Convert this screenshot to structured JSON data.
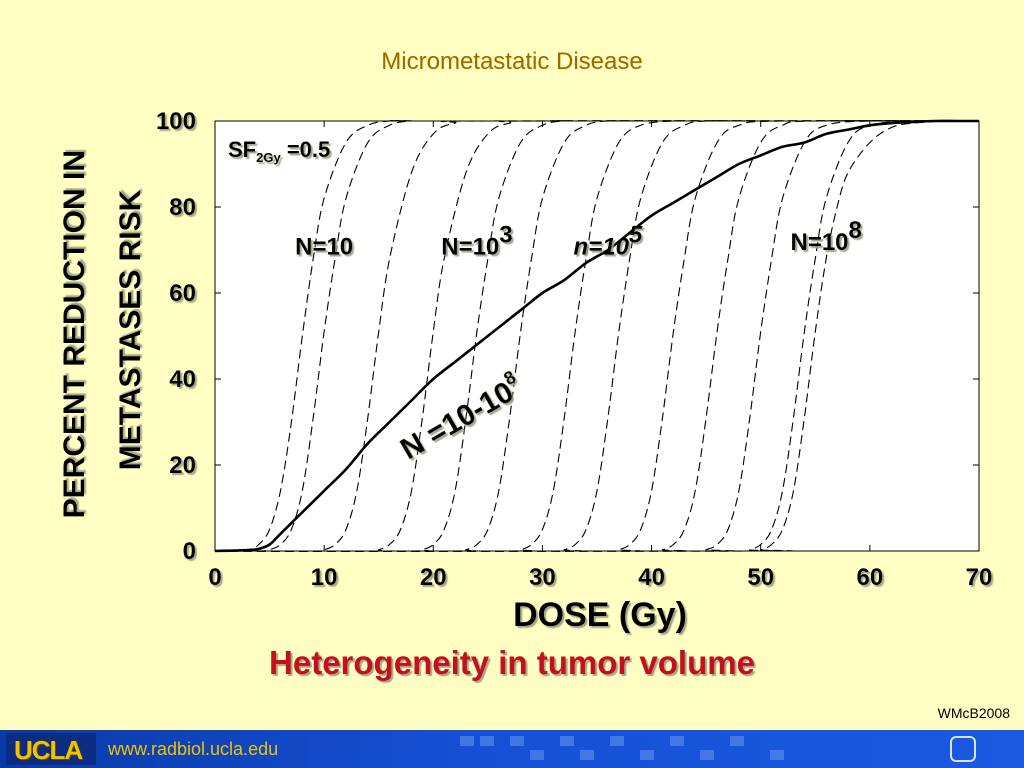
{
  "slide": {
    "title": "Micrometastatic Disease",
    "subtitle": "Heterogeneity in tumor volume",
    "credit": "WMcB2008"
  },
  "footer": {
    "logo_text": "UCLA",
    "url": "www.radbiol.ucla.edu"
  },
  "chart_data": {
    "type": "line",
    "xlabel": "DOSE (Gy)",
    "ylabel_lines": [
      "PERCENT REDUCTION IN",
      "METASTASES RISK"
    ],
    "xlim": [
      0,
      70
    ],
    "ylim": [
      0,
      100
    ],
    "x_ticks": [
      0,
      10,
      20,
      30,
      40,
      50,
      60,
      70
    ],
    "y_ticks": [
      0,
      20,
      40,
      60,
      80,
      100
    ],
    "grid": false,
    "legend": "none",
    "sf_label": {
      "base": "SF",
      "sub": "2Gy",
      "rest": " =0.5"
    },
    "annotations": [
      {
        "text": "N=10",
        "sup": "",
        "italic": false,
        "x": 10,
        "y": 69
      },
      {
        "text": "N=10",
        "sup": "3",
        "italic": false,
        "x": 24,
        "y": 69
      },
      {
        "text": "n=10",
        "sup": "5",
        "italic": true,
        "x": 36,
        "y": 69
      },
      {
        "text": "N=10",
        "sup": "8",
        "italic": false,
        "x": 56,
        "y": 70
      },
      {
        "text": "N =10-10",
        "sup": "8",
        "italic": false,
        "x": 23,
        "y": 29,
        "rotate": -30
      }
    ],
    "series": [
      {
        "style": "dashed",
        "x": [
          0,
          3,
          4,
          5,
          6,
          7,
          8,
          9,
          10,
          12,
          14,
          16,
          18,
          20,
          70
        ],
        "y": [
          0,
          0.3,
          1.5,
          5,
          14,
          30,
          50,
          68,
          82,
          95,
          99,
          100,
          100,
          100,
          100
        ]
      },
      {
        "style": "dashed",
        "x": [
          0,
          4,
          5,
          6,
          7,
          8,
          9,
          10,
          11,
          12,
          14,
          16,
          18,
          20,
          70
        ],
        "y": [
          0,
          0,
          0.3,
          1.5,
          5,
          14,
          31,
          51,
          68,
          82,
          95,
          99,
          100,
          100,
          100
        ]
      },
      {
        "style": "dashed",
        "x": [
          0,
          9,
          10,
          11,
          12,
          13,
          14,
          15,
          16,
          18,
          20,
          22,
          25,
          70
        ],
        "y": [
          0,
          0,
          0.3,
          1.5,
          5,
          14,
          31,
          51,
          68,
          88,
          97,
          99.5,
          100,
          100
        ]
      },
      {
        "style": "dashed",
        "x": [
          0,
          14,
          15,
          16,
          17,
          18,
          19,
          20,
          21,
          23,
          25,
          27,
          30,
          70
        ],
        "y": [
          0,
          0,
          0.3,
          1.5,
          5,
          14,
          31,
          51,
          68,
          88,
          97,
          99.5,
          100,
          100
        ]
      },
      {
        "style": "dashed",
        "x": [
          0,
          18,
          19,
          20,
          21,
          22,
          23,
          24,
          25,
          26,
          28,
          30,
          32,
          35,
          70
        ],
        "y": [
          0,
          0,
          0.3,
          1.5,
          5,
          14,
          31,
          51,
          68,
          82,
          95,
          99,
          100,
          100,
          100
        ]
      },
      {
        "style": "dashed",
        "x": [
          0,
          22,
          23,
          24,
          25,
          26,
          27,
          28,
          29,
          30,
          32,
          34,
          36,
          40,
          70
        ],
        "y": [
          0,
          0,
          0.3,
          1.5,
          5,
          14,
          31,
          51,
          68,
          82,
          95,
          99,
          100,
          100,
          100
        ]
      },
      {
        "style": "dashed",
        "x": [
          0,
          27,
          28,
          29,
          30,
          31,
          32,
          33,
          34,
          35,
          37,
          39,
          42,
          45,
          70
        ],
        "y": [
          0,
          0,
          0.3,
          1.5,
          5,
          14,
          31,
          51,
          68,
          82,
          95,
          99,
          100,
          100,
          100
        ]
      },
      {
        "style": "dashed",
        "x": [
          0,
          31,
          32,
          33,
          34,
          35,
          36,
          37,
          38,
          39,
          41,
          43,
          45,
          50,
          70
        ],
        "y": [
          0,
          0,
          0.3,
          1.5,
          5,
          14,
          31,
          51,
          68,
          82,
          95,
          99,
          100,
          100,
          100
        ]
      },
      {
        "style": "dashed",
        "x": [
          0,
          36,
          37,
          38,
          39,
          40,
          41,
          42,
          43,
          44,
          46,
          48,
          52,
          70
        ],
        "y": [
          0,
          0,
          0.3,
          1.5,
          5,
          14,
          31,
          51,
          68,
          82,
          95,
          99,
          100,
          100
        ]
      },
      {
        "style": "dashed",
        "x": [
          0,
          40,
          41,
          42,
          43,
          44,
          45,
          46,
          47,
          48,
          50,
          52,
          55,
          70
        ],
        "y": [
          0,
          0,
          0.3,
          1.5,
          5,
          14,
          31,
          51,
          68,
          82,
          95,
          99,
          100,
          100
        ]
      },
      {
        "style": "dashed",
        "x": [
          0,
          44,
          45,
          46,
          47,
          48,
          49,
          50,
          51,
          52,
          54,
          56,
          60,
          70
        ],
        "y": [
          0,
          0,
          0.3,
          1.5,
          5,
          14,
          31,
          51,
          68,
          82,
          95,
          99,
          100,
          100
        ]
      },
      {
        "style": "dashed",
        "x": [
          0,
          48,
          49,
          50,
          51,
          52,
          53,
          54,
          55,
          56,
          58,
          60,
          64,
          70
        ],
        "y": [
          0,
          0,
          0.3,
          1.5,
          5,
          14,
          31,
          51,
          68,
          82,
          95,
          99,
          100,
          100
        ]
      },
      {
        "style": "dashed",
        "x": [
          0,
          49,
          50,
          51,
          52,
          53,
          54,
          55,
          56,
          57,
          58,
          60,
          62,
          64,
          67,
          70
        ],
        "y": [
          0,
          0,
          0.3,
          1.5,
          5,
          14,
          31,
          51,
          68,
          80,
          88,
          95,
          98.5,
          99.5,
          100,
          100
        ]
      },
      {
        "style": "solid",
        "x": [
          0,
          3,
          4,
          5,
          6,
          8,
          10,
          12,
          14,
          16,
          18,
          20,
          22,
          24,
          26,
          28,
          30,
          32,
          34,
          36,
          38,
          40,
          42,
          44,
          46,
          48,
          50,
          52,
          54,
          56,
          58,
          60,
          62,
          64,
          66,
          68,
          70
        ],
        "y": [
          0,
          0.2,
          0.5,
          1.5,
          4,
          9,
          14,
          19,
          25,
          30,
          35,
          40,
          44,
          48,
          52,
          56,
          60,
          63,
          67,
          70,
          74,
          78,
          81,
          84,
          87,
          90,
          92,
          94,
          95,
          97,
          98,
          99,
          99.5,
          99.8,
          100,
          100,
          100
        ]
      }
    ]
  }
}
